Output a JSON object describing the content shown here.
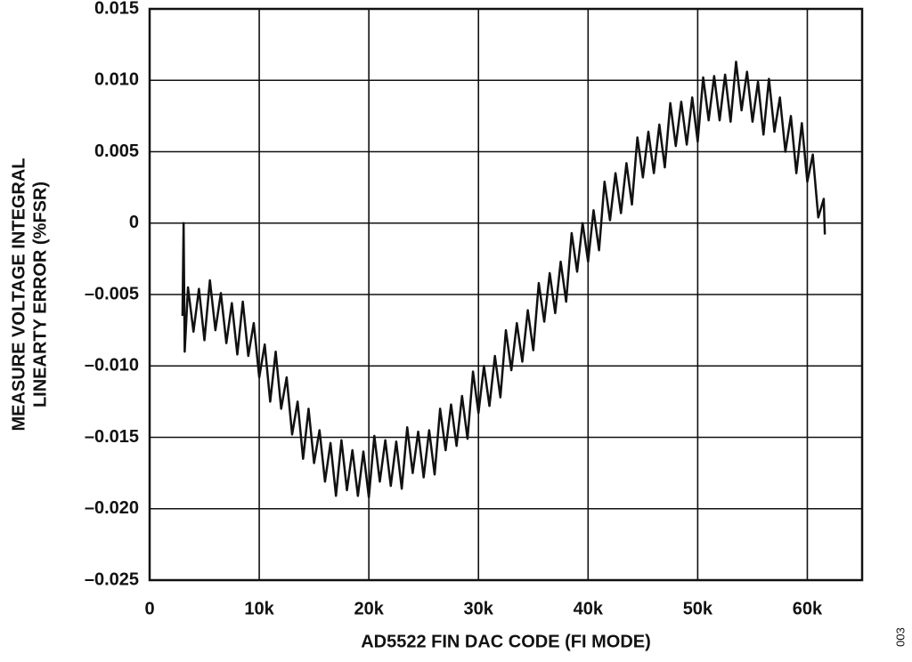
{
  "chart_data": {
    "type": "line",
    "xlabel": "AD5522 FIN DAC CODE (FI MODE)",
    "ylabel": [
      "MEASURE VOLTAGE INTEGRAL",
      "LINEARTY ERROR (%FSR)"
    ],
    "annotation": "003",
    "color": "#111111",
    "grid": true,
    "xlim": [
      0,
      65000
    ],
    "ylim": [
      -0.025,
      0.015
    ],
    "xticks": [
      0,
      {
        "value": 10000,
        "label": "10k"
      },
      {
        "value": 20000,
        "label": "20k"
      },
      {
        "value": 30000,
        "label": "30k"
      },
      {
        "value": 40000,
        "label": "40k"
      },
      {
        "value": 50000,
        "label": "50k"
      },
      {
        "value": 60000,
        "label": "60k"
      }
    ],
    "yticks": [
      {
        "value": -0.025,
        "label": "–0.025"
      },
      {
        "value": -0.02,
        "label": "–0.020"
      },
      {
        "value": -0.015,
        "label": "–0.015"
      },
      {
        "value": -0.01,
        "label": "–0.010"
      },
      {
        "value": -0.005,
        "label": "–0.005"
      },
      0,
      {
        "value": 0.005,
        "label": "0.005"
      },
      {
        "value": 0.01,
        "label": "0.010"
      },
      {
        "value": 0.015,
        "label": "0.015"
      }
    ],
    "x": [
      3000,
      3100,
      3200,
      3500,
      4000,
      4500,
      5000,
      5500,
      6000,
      6500,
      7000,
      7500,
      8000,
      8500,
      9000,
      9500,
      10000,
      10500,
      11000,
      11500,
      12000,
      12500,
      13000,
      13500,
      14000,
      14500,
      15000,
      15500,
      16000,
      16500,
      17000,
      17500,
      18000,
      18500,
      19000,
      19500,
      20000,
      20500,
      21000,
      21500,
      22000,
      22500,
      23000,
      23500,
      24000,
      24500,
      25000,
      25500,
      26000,
      26500,
      27000,
      27500,
      28000,
      28500,
      29000,
      29500,
      30000,
      30500,
      31000,
      31500,
      32000,
      32500,
      33000,
      33500,
      34000,
      34500,
      35000,
      35500,
      36000,
      36500,
      37000,
      37500,
      38000,
      38500,
      39000,
      39500,
      40000,
      40500,
      41000,
      41500,
      42000,
      42500,
      43000,
      43500,
      44000,
      44500,
      45000,
      45500,
      46000,
      46500,
      47000,
      47500,
      48000,
      48500,
      49000,
      49500,
      50000,
      50500,
      51000,
      51500,
      52000,
      52500,
      53000,
      53500,
      54000,
      54500,
      55000,
      55500,
      56000,
      56500,
      57000,
      57500,
      58000,
      58500,
      59000,
      59500,
      60000,
      60500,
      61000,
      61500,
      61600
    ],
    "values": [
      -0.0065,
      0.0,
      -0.009,
      -0.0045,
      -0.0076,
      -0.0046,
      -0.0082,
      -0.004,
      -0.0075,
      -0.0049,
      -0.0084,
      -0.0056,
      -0.0092,
      -0.0055,
      -0.0093,
      -0.007,
      -0.0108,
      -0.0085,
      -0.0125,
      -0.009,
      -0.013,
      -0.0108,
      -0.0148,
      -0.0125,
      -0.0165,
      -0.013,
      -0.0168,
      -0.0145,
      -0.0181,
      -0.0154,
      -0.0191,
      -0.0152,
      -0.0187,
      -0.0159,
      -0.0191,
      -0.016,
      -0.0192,
      -0.0149,
      -0.0181,
      -0.0152,
      -0.0184,
      -0.0153,
      -0.0186,
      -0.0143,
      -0.0175,
      -0.0146,
      -0.0178,
      -0.0145,
      -0.0176,
      -0.013,
      -0.0159,
      -0.0127,
      -0.0156,
      -0.0121,
      -0.0151,
      -0.0104,
      -0.0133,
      -0.01,
      -0.0128,
      -0.0093,
      -0.0122,
      -0.0075,
      -0.0103,
      -0.007,
      -0.0097,
      -0.0061,
      -0.0089,
      -0.0042,
      -0.0069,
      -0.0035,
      -0.0063,
      -0.0027,
      -0.0055,
      -0.0007,
      -0.0034,
      0.0,
      -0.0027,
      0.0009,
      -0.0019,
      0.0029,
      0.0002,
      0.0035,
      0.0007,
      0.0042,
      0.0013,
      0.006,
      0.0032,
      0.0064,
      0.0035,
      0.0069,
      0.0039,
      0.0084,
      0.0054,
      0.0085,
      0.0055,
      0.0088,
      0.0057,
      0.0102,
      0.0072,
      0.0103,
      0.0072,
      0.0104,
      0.0071,
      0.0113,
      0.0079,
      0.0106,
      0.0071,
      0.0099,
      0.0062,
      0.0101,
      0.0064,
      0.0088,
      0.005,
      0.0075,
      0.0035,
      0.007,
      0.0029,
      0.0048,
      0.0004,
      0.0017,
      -0.0008
    ]
  }
}
